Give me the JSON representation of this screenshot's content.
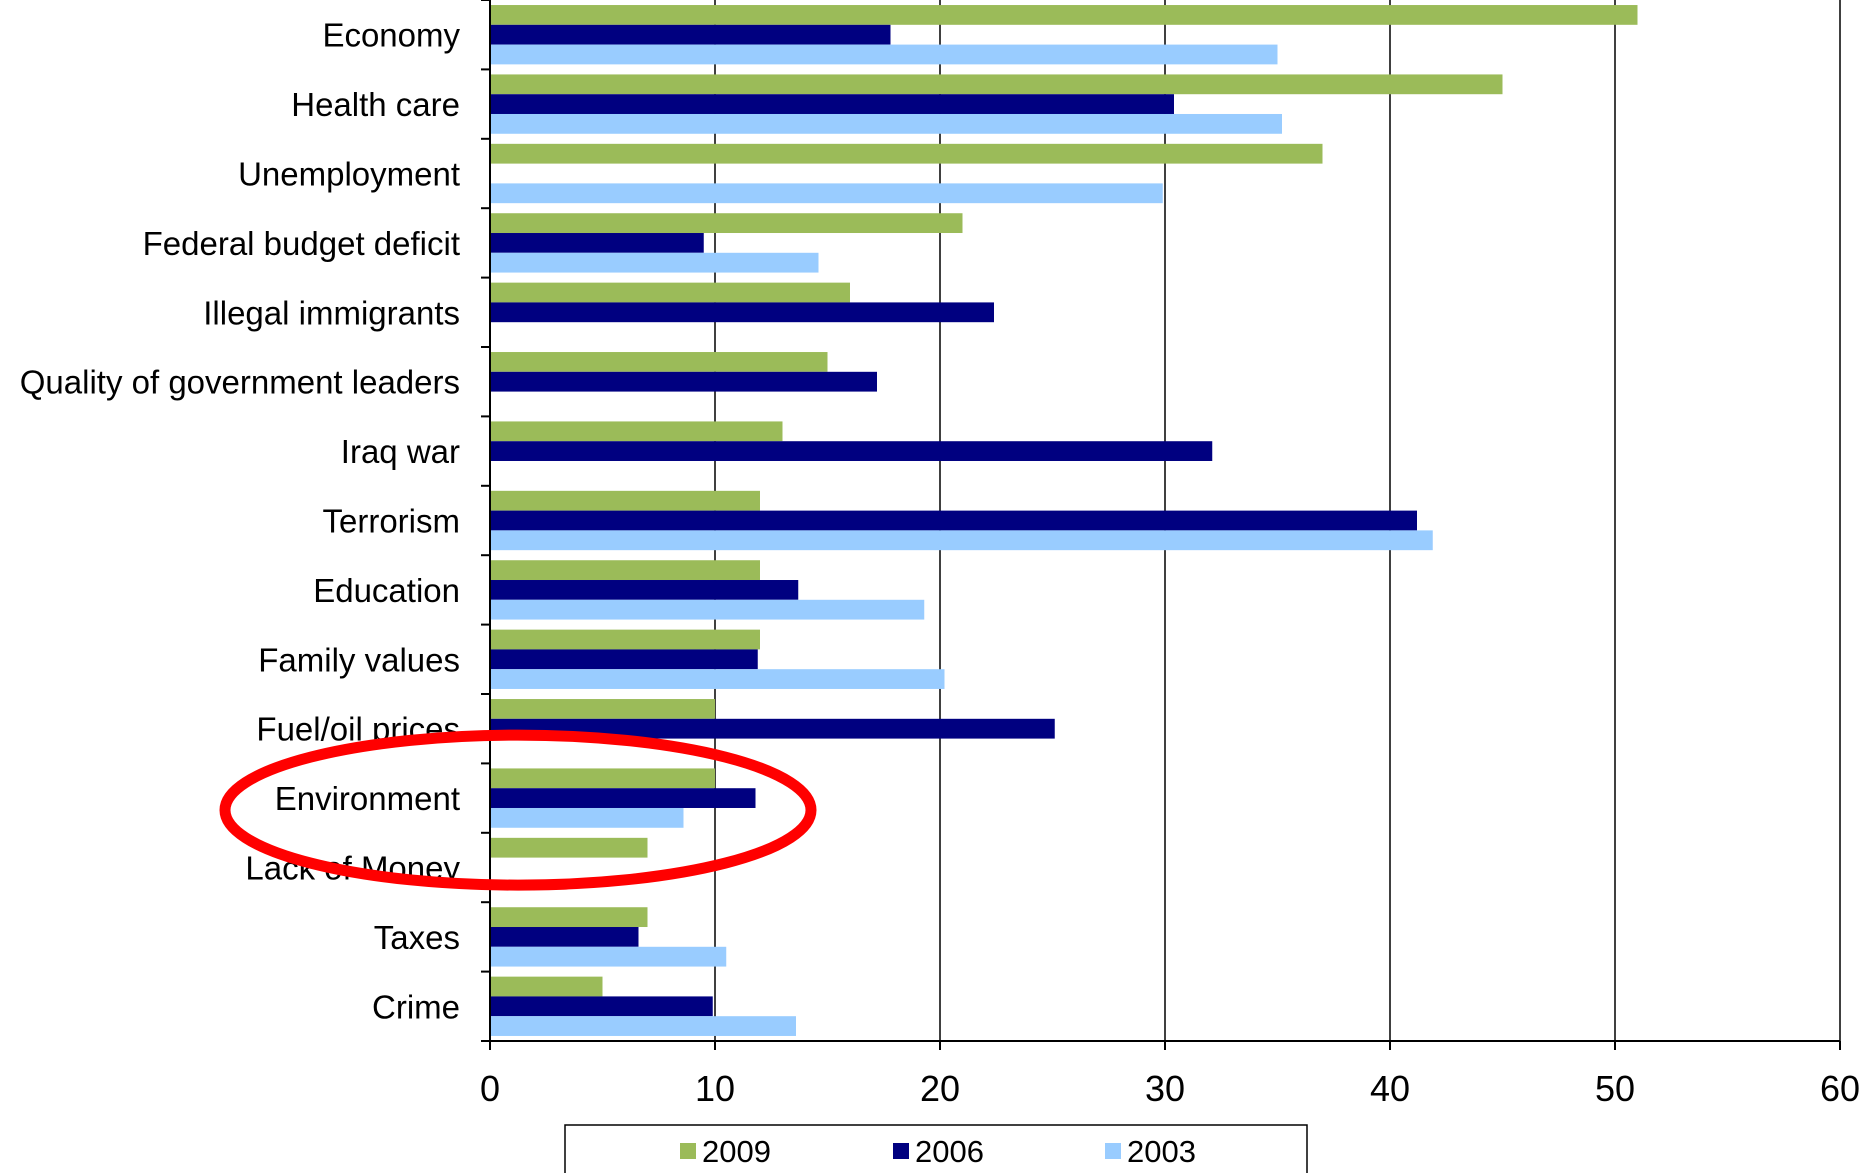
{
  "chart_data": {
    "type": "bar",
    "orientation": "horizontal",
    "categories": [
      "Economy",
      "Health care",
      "Unemployment",
      "Federal budget deficit",
      "Illegal immigrants",
      "Quality of government leaders",
      "Iraq war",
      "Terrorism",
      "Education",
      "Family values",
      "Fuel/oil prices",
      "Environment",
      "Lack of Money",
      "Taxes",
      "Crime"
    ],
    "series": [
      {
        "name": "2009",
        "color": "#9bbb59",
        "values": [
          51,
          45,
          37,
          21,
          16,
          15,
          13,
          12,
          12,
          12,
          10,
          10,
          7,
          7,
          5
        ]
      },
      {
        "name": "2006",
        "color": "#000080",
        "values": [
          17.8,
          30.4,
          null,
          9.5,
          22.4,
          17.2,
          32.1,
          41.2,
          13.7,
          11.9,
          25.1,
          11.8,
          null,
          6.6,
          9.9
        ]
      },
      {
        "name": "2003",
        "color": "#99ccff",
        "values": [
          35,
          35.2,
          29.9,
          14.6,
          null,
          null,
          null,
          41.9,
          19.3,
          20.2,
          null,
          8.6,
          null,
          10.5,
          13.6
        ]
      }
    ],
    "xlim": [
      0,
      60
    ],
    "xticks": [
      0,
      10,
      20,
      30,
      40,
      50,
      60
    ],
    "grid": true,
    "legend": "bottom",
    "annotation": {
      "type": "ellipse",
      "color": "#ff0000",
      "highlight": "Environment"
    },
    "title": "",
    "xlabel": "",
    "ylabel": ""
  }
}
